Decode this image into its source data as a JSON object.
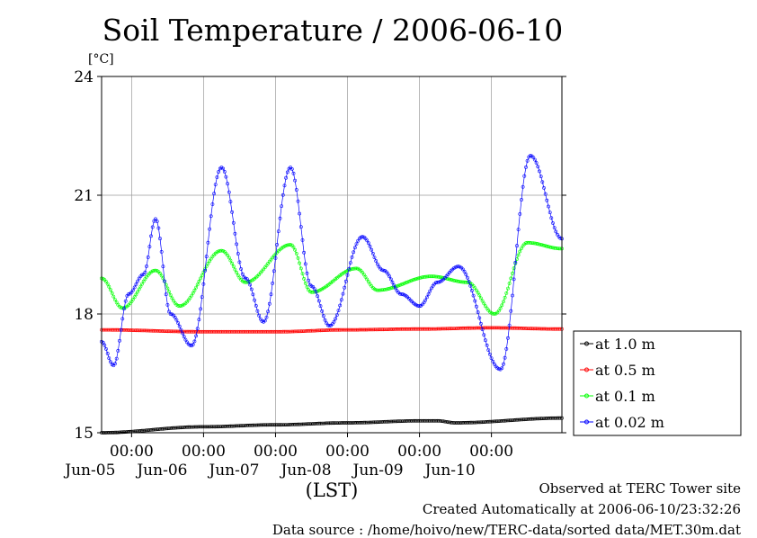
{
  "chart_data": {
    "type": "line",
    "title": "Soil Temperature / 2006-06-10",
    "ylabel": "[°C]",
    "xlabel": "(LST)",
    "ylim": [
      15,
      24
    ],
    "yticks": [
      15,
      18,
      21,
      24
    ],
    "x_range": [
      "2006-06-04 14:00",
      "2006-06-10 23:30"
    ],
    "xticks": [
      {
        "time": "2006-06-05 00:00",
        "label": "00:00",
        "date": "Jun-05"
      },
      {
        "time": "2006-06-06 00:00",
        "label": "00:00",
        "date": "Jun-06"
      },
      {
        "time": "2006-06-07 00:00",
        "label": "00:00",
        "date": "Jun-07"
      },
      {
        "time": "2006-06-08 00:00",
        "label": "00:00",
        "date": "Jun-08"
      },
      {
        "time": "2006-06-09 00:00",
        "label": "00:00",
        "date": "Jun-09"
      },
      {
        "time": "2006-06-10 00:00",
        "label": "00:00",
        "date": "Jun-10"
      }
    ],
    "grid": true,
    "legend_position": "right",
    "series": [
      {
        "name": "at 1.0 m",
        "color": "#000000",
        "x": [
          "2006-06-04 14:00",
          "2006-06-06 00:00",
          "2006-06-07 00:00",
          "2006-06-08 00:00",
          "2006-06-09 00:00",
          "2006-06-09 06:00",
          "2006-06-09 12:00",
          "2006-06-10 23:30"
        ],
        "y": [
          15.0,
          15.15,
          15.2,
          15.25,
          15.3,
          15.3,
          15.25,
          15.37
        ]
      },
      {
        "name": "at 0.5 m",
        "color": "#ff0000",
        "x": [
          "2006-06-04 14:00",
          "2006-06-06 00:00",
          "2006-06-07 00:00",
          "2006-06-08 00:00",
          "2006-06-09 00:00",
          "2006-06-10 00:00",
          "2006-06-10 23:30"
        ],
        "y": [
          17.6,
          17.55,
          17.55,
          17.6,
          17.62,
          17.65,
          17.62
        ]
      },
      {
        "name": "at 0.1 m",
        "color": "#00ff00",
        "x": [
          "2006-06-04 14:00",
          "2006-06-04 21:00",
          "2006-06-05 08:00",
          "2006-06-05 16:00",
          "2006-06-06 06:00",
          "2006-06-06 14:00",
          "2006-06-07 05:00",
          "2006-06-07 12:00",
          "2006-06-08 03:00",
          "2006-06-08 10:00",
          "2006-06-09 04:00",
          "2006-06-09 16:00",
          "2006-06-10 01:00",
          "2006-06-10 12:00",
          "2006-06-10 23:30"
        ],
        "y": [
          18.9,
          18.15,
          19.1,
          18.2,
          19.6,
          18.8,
          19.75,
          18.55,
          19.15,
          18.6,
          18.95,
          18.8,
          18.0,
          19.8,
          19.65
        ]
      },
      {
        "name": "at 0.02 m",
        "color": "#0000ff",
        "x": [
          "2006-06-04 14:00",
          "2006-06-04 18:00",
          "2006-06-04 23:00",
          "2006-06-05 04:00",
          "2006-06-05 08:00",
          "2006-06-05 13:00",
          "2006-06-05 20:00",
          "2006-06-06 06:00",
          "2006-06-06 14:00",
          "2006-06-06 20:00",
          "2006-06-07 05:00",
          "2006-06-07 12:00",
          "2006-06-07 18:00",
          "2006-06-08 05:00",
          "2006-06-08 12:00",
          "2006-06-08 18:00",
          "2006-06-09 00:00",
          "2006-06-09 06:00",
          "2006-06-09 13:00",
          "2006-06-10 03:00",
          "2006-06-10 13:00",
          "2006-06-10 23:30"
        ],
        "y": [
          17.3,
          16.7,
          18.5,
          19.0,
          20.4,
          18.0,
          17.2,
          21.7,
          18.9,
          17.8,
          21.7,
          18.7,
          17.7,
          19.95,
          19.1,
          18.5,
          18.2,
          18.8,
          19.2,
          16.6,
          22.0,
          19.9
        ]
      }
    ]
  },
  "footer": {
    "observed": "Observed at TERC Tower site",
    "created": "Created Automatically at 2006-06-10/23:32:26",
    "source": "Data source : /home/hoivo/new/TERC-data/sorted  data/MET.30m.dat"
  }
}
